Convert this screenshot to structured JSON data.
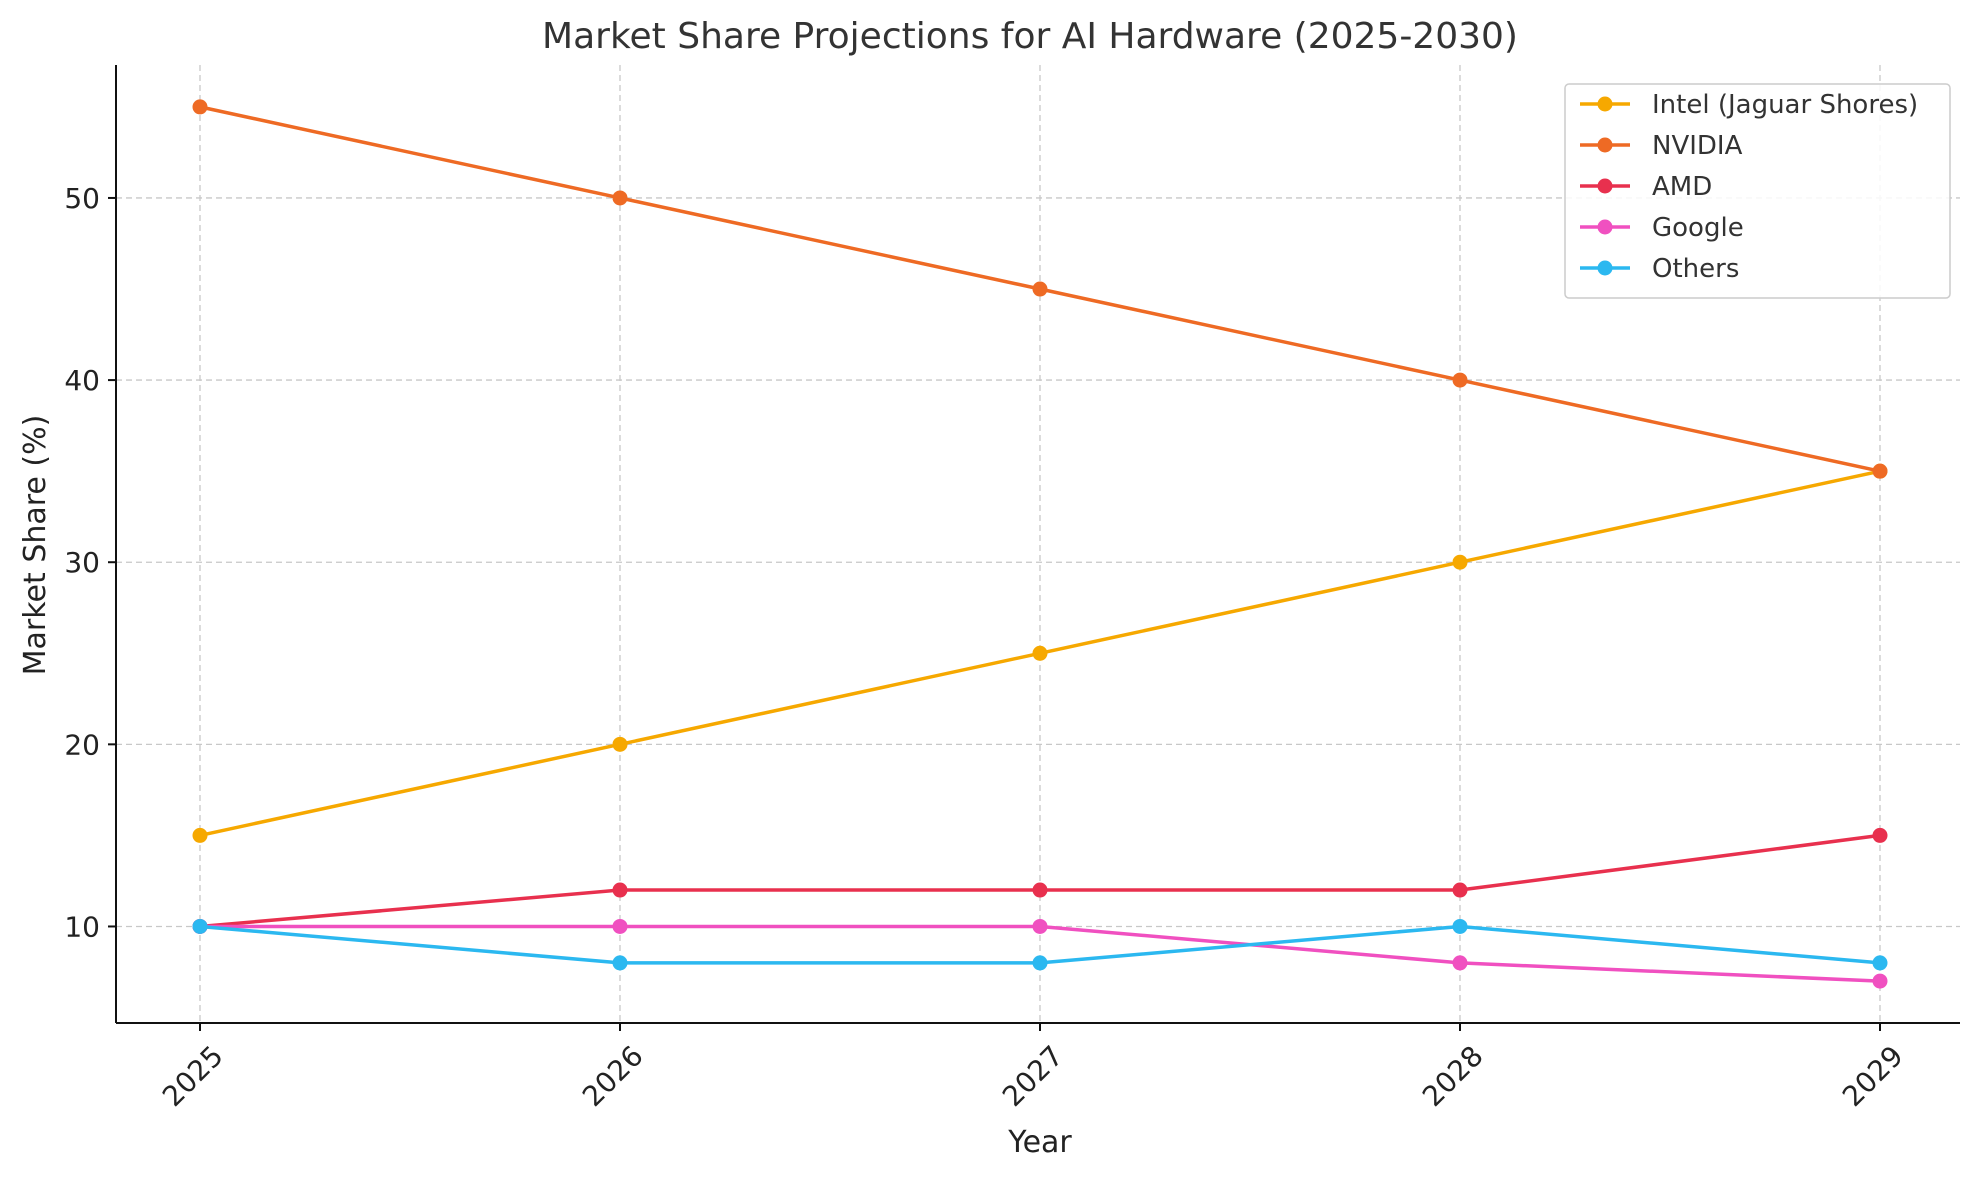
{
  "chart_data": {
    "type": "line",
    "title": "Market Share Projections for AI Hardware (2025-2030)",
    "xlabel": "Year",
    "ylabel": "Market Share (%)",
    "categories": [
      "2025",
      "2026",
      "2027",
      "2028",
      "2029"
    ],
    "ylim": [
      4.7,
      57.3
    ],
    "yticks": [
      10,
      20,
      30,
      40,
      50
    ],
    "grid": true,
    "legend_position": "top-right",
    "series": [
      {
        "name": "Intel (Jaguar Shores)",
        "color": "#F6A800",
        "values": [
          15,
          20,
          25,
          30,
          35
        ]
      },
      {
        "name": "NVIDIA",
        "color": "#EE6A24",
        "values": [
          55,
          50,
          45,
          40,
          35
        ]
      },
      {
        "name": "AMD",
        "color": "#E8304E",
        "values": [
          10,
          12,
          12,
          12,
          15
        ]
      },
      {
        "name": "Google",
        "color": "#F050C0",
        "values": [
          10,
          10,
          10,
          8,
          7
        ]
      },
      {
        "name": "Others",
        "color": "#2BB8F0",
        "values": [
          10,
          8,
          8,
          10,
          8
        ]
      }
    ]
  }
}
